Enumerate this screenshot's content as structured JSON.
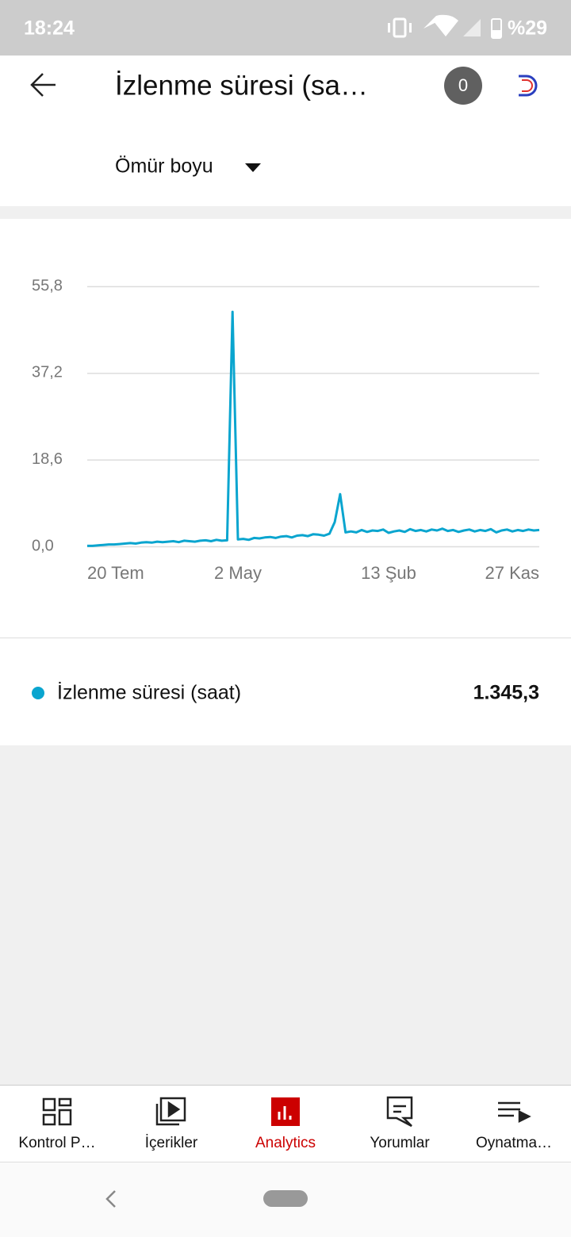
{
  "status_bar": {
    "time": "18:24",
    "battery": "%29"
  },
  "header": {
    "title": "İzlenme süresi (sa…",
    "badge": "0"
  },
  "period": "Ömür boyu",
  "chart_data": {
    "type": "line",
    "categories": [
      "20 Tem",
      null,
      null,
      null,
      null,
      null,
      null,
      null,
      null,
      null,
      null,
      null,
      null,
      null,
      null,
      null,
      null,
      null,
      null,
      null,
      null,
      null,
      null,
      null,
      null,
      null,
      null,
      null,
      "2 May",
      null,
      null,
      null,
      null,
      null,
      null,
      null,
      null,
      null,
      null,
      null,
      null,
      null,
      null,
      null,
      null,
      null,
      null,
      null,
      null,
      null,
      null,
      null,
      null,
      null,
      null,
      null,
      "13 Şub",
      null,
      null,
      null,
      null,
      null,
      null,
      null,
      null,
      null,
      null,
      null,
      null,
      null,
      null,
      null,
      null,
      null,
      null,
      null,
      null,
      null,
      null,
      null,
      null,
      null,
      null,
      null,
      "27 Kas"
    ],
    "series": [
      {
        "name": "İzlenme süresi (saat)",
        "color": "#0aa5cf",
        "values": [
          0.1,
          0.1,
          0.2,
          0.3,
          0.4,
          0.4,
          0.5,
          0.6,
          0.7,
          0.6,
          0.8,
          0.9,
          0.8,
          1.0,
          0.9,
          1.0,
          1.1,
          0.9,
          1.2,
          1.1,
          1.0,
          1.2,
          1.3,
          1.1,
          1.4,
          1.2,
          1.3,
          50.3,
          1.5,
          1.6,
          1.4,
          1.8,
          1.7,
          1.9,
          2.0,
          1.8,
          2.1,
          2.2,
          1.9,
          2.3,
          2.4,
          2.2,
          2.6,
          2.5,
          2.3,
          2.7,
          5.2,
          11.2,
          3.0,
          3.2,
          3.0,
          3.5,
          3.1,
          3.4,
          3.3,
          3.6,
          2.9,
          3.2,
          3.4,
          3.1,
          3.7,
          3.3,
          3.5,
          3.2,
          3.6,
          3.4,
          3.8,
          3.3,
          3.5,
          3.1,
          3.4,
          3.6,
          3.2,
          3.5,
          3.3,
          3.7,
          3.0,
          3.4,
          3.6,
          3.2,
          3.5,
          3.3,
          3.6,
          3.4,
          3.5
        ]
      }
    ],
    "ylim": [
      0,
      55.8
    ],
    "yticks": [
      {
        "value": 0,
        "label": "0,0"
      },
      {
        "value": 18.6,
        "label": "18,6"
      },
      {
        "value": 37.2,
        "label": "37,2"
      },
      {
        "value": 55.8,
        "label": "55,8"
      }
    ],
    "grid": true
  },
  "summary": {
    "total": "1.345,3"
  },
  "bottom_nav": {
    "items": [
      "Kontrol P…",
      "İçerikler",
      "Analytics",
      "Yorumlar",
      "Oynatma…"
    ]
  }
}
